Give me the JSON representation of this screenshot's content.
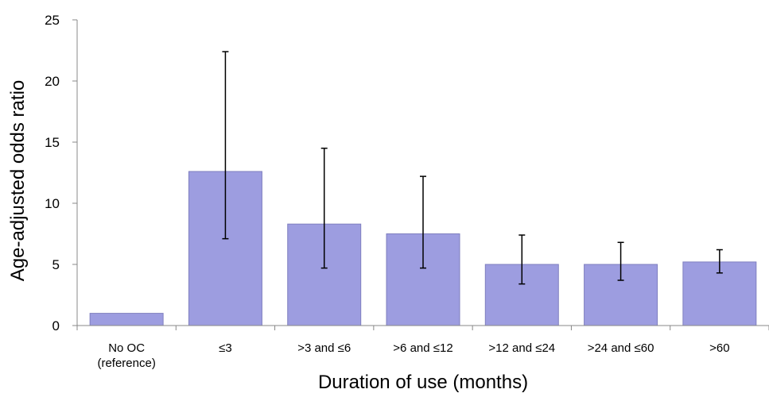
{
  "chart_data": {
    "type": "bar",
    "title": "",
    "xlabel": "Duration of use (months)",
    "ylabel": "Age-adjusted odds ratio",
    "ylim": [
      0,
      25
    ],
    "yticks": [
      "0",
      "5",
      "10",
      "15",
      "20",
      "25"
    ],
    "categories": [
      [
        "No OC",
        "(reference)"
      ],
      [
        "≤3"
      ],
      [
        ">3 and ≤6"
      ],
      [
        ">6 and ≤12"
      ],
      [
        ">12 and ≤24"
      ],
      [
        ">24 and ≤60"
      ],
      [
        ">60"
      ]
    ],
    "values": [
      1.0,
      12.6,
      8.3,
      7.5,
      5.0,
      5.0,
      5.2
    ],
    "error_low": [
      null,
      7.1,
      4.7,
      4.7,
      3.4,
      3.7,
      4.3
    ],
    "error_high": [
      null,
      22.4,
      14.5,
      12.2,
      7.4,
      6.8,
      6.2
    ],
    "bar_color": "#9d9de0",
    "bar_stroke": "#7f7fbf",
    "error_bar_color": "#000000",
    "grid": false,
    "legend": "none"
  }
}
